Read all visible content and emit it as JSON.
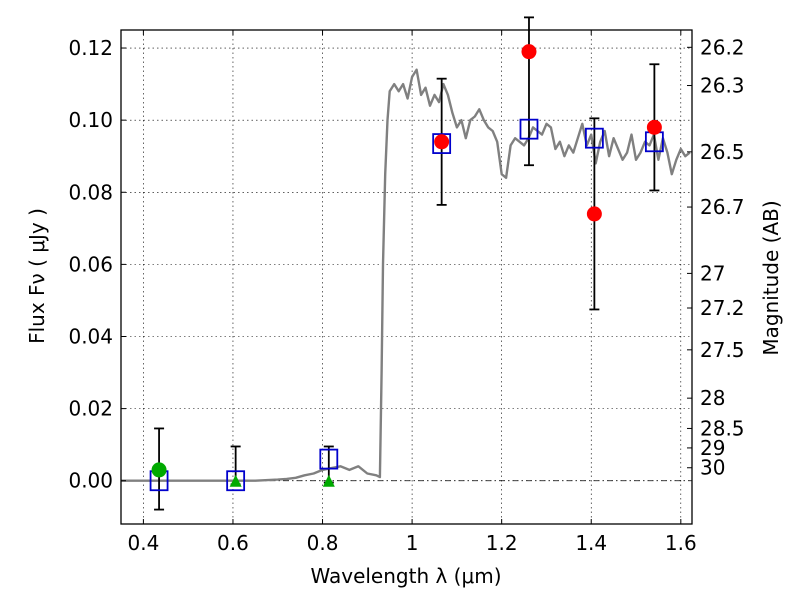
{
  "chart_data": {
    "type": "scatter",
    "xlabel": "Wavelength  λ (μm)",
    "ylabel": "Flux  Fν  ( μJy )",
    "y2label": "Magnitude (AB)",
    "xlim": [
      0.35,
      1.625
    ],
    "ylim": [
      -0.012,
      0.125
    ],
    "grid": true,
    "x_ticks": [
      0.4,
      0.6,
      0.8,
      1.0,
      1.2,
      1.4,
      1.6
    ],
    "x_tick_labels": [
      "0.4",
      "0.6",
      "0.8",
      "1",
      "1.2",
      "1.4",
      "1.6"
    ],
    "y_ticks": [
      0.0,
      0.02,
      0.04,
      0.06,
      0.08,
      0.1,
      0.12
    ],
    "y_tick_labels": [
      "0.00",
      "0.02",
      "0.04",
      "0.06",
      "0.08",
      "0.10",
      "0.12"
    ],
    "mag_ticks": [
      "26.2",
      "26.3",
      "26.5",
      "26.7",
      "27",
      "27.2",
      "27.5",
      "28",
      "28.5",
      "29",
      "30"
    ],
    "mag_tick_flux": [
      0.1202,
      0.1096,
      0.0912,
      0.0759,
      0.0575,
      0.0479,
      0.0363,
      0.0229,
      0.0145,
      0.0091,
      0.0036
    ],
    "series": [
      {
        "kind": "line",
        "color": "#808080",
        "x": [
          0.35,
          0.45,
          0.55,
          0.65,
          0.7,
          0.72,
          0.74,
          0.76,
          0.78,
          0.8,
          0.82,
          0.84,
          0.86,
          0.88,
          0.9,
          0.92,
          0.928,
          0.932,
          0.935,
          0.94,
          0.945,
          0.95,
          0.96,
          0.97,
          0.98,
          0.99,
          1.0,
          1.01,
          1.02,
          1.03,
          1.04,
          1.05,
          1.06,
          1.07,
          1.08,
          1.09,
          1.1,
          1.11,
          1.12,
          1.13,
          1.14,
          1.15,
          1.16,
          1.17,
          1.18,
          1.19,
          1.2,
          1.21,
          1.22,
          1.23,
          1.24,
          1.25,
          1.26,
          1.27,
          1.28,
          1.29,
          1.3,
          1.31,
          1.32,
          1.33,
          1.34,
          1.35,
          1.36,
          1.37,
          1.38,
          1.39,
          1.4,
          1.41,
          1.42,
          1.43,
          1.44,
          1.45,
          1.46,
          1.47,
          1.48,
          1.49,
          1.5,
          1.51,
          1.52,
          1.53,
          1.54,
          1.55,
          1.56,
          1.57,
          1.58,
          1.59,
          1.6,
          1.61,
          1.62
        ],
        "y": [
          0.0,
          0.0,
          0.0,
          0.0,
          0.0003,
          0.0005,
          0.0008,
          0.0015,
          0.002,
          0.003,
          0.0035,
          0.004,
          0.003,
          0.004,
          0.002,
          0.0015,
          0.001,
          0.03,
          0.06,
          0.085,
          0.1,
          0.108,
          0.11,
          0.108,
          0.11,
          0.106,
          0.112,
          0.114,
          0.107,
          0.109,
          0.104,
          0.107,
          0.105,
          0.11,
          0.107,
          0.102,
          0.098,
          0.1,
          0.095,
          0.1,
          0.101,
          0.103,
          0.1,
          0.098,
          0.097,
          0.094,
          0.085,
          0.084,
          0.093,
          0.095,
          0.094,
          0.093,
          0.095,
          0.098,
          0.097,
          0.096,
          0.099,
          0.098,
          0.092,
          0.094,
          0.09,
          0.093,
          0.091,
          0.095,
          0.099,
          0.093,
          0.096,
          0.088,
          0.094,
          0.097,
          0.09,
          0.095,
          0.092,
          0.089,
          0.091,
          0.096,
          0.089,
          0.091,
          0.094,
          0.093,
          0.096,
          0.089,
          0.095,
          0.091,
          0.085,
          0.089,
          0.092,
          0.09,
          0.091
        ]
      },
      {
        "kind": "model_points",
        "marker": "open-square",
        "color": "#0000cc",
        "x": [
          0.435,
          0.606,
          0.814,
          1.066,
          1.261,
          1.407,
          1.541
        ],
        "y": [
          0.0,
          0.0,
          0.006,
          0.0935,
          0.0975,
          0.095,
          0.094
        ]
      },
      {
        "kind": "observed",
        "marker": "filled-circle",
        "color": "#ff0000",
        "x": [
          1.066,
          1.261,
          1.407,
          1.541
        ],
        "y": [
          0.094,
          0.119,
          0.074,
          0.098
        ],
        "err_low": [
          0.0765,
          0.0875,
          0.0475,
          0.0805
        ],
        "err_high": [
          0.1115,
          0.1285,
          0.1005,
          0.1155
        ]
      },
      {
        "kind": "upper_limits",
        "color": "#00aa00",
        "x": [
          0.435,
          0.606,
          0.814
        ],
        "y": [
          0.003,
          0.0,
          0.0
        ],
        "markers": [
          "circle",
          "triangle",
          "triangle"
        ],
        "err_low": [
          -0.008,
          -0.001,
          -0.0005
        ],
        "err_high": [
          0.0145,
          0.0095,
          0.0095
        ]
      }
    ]
  }
}
